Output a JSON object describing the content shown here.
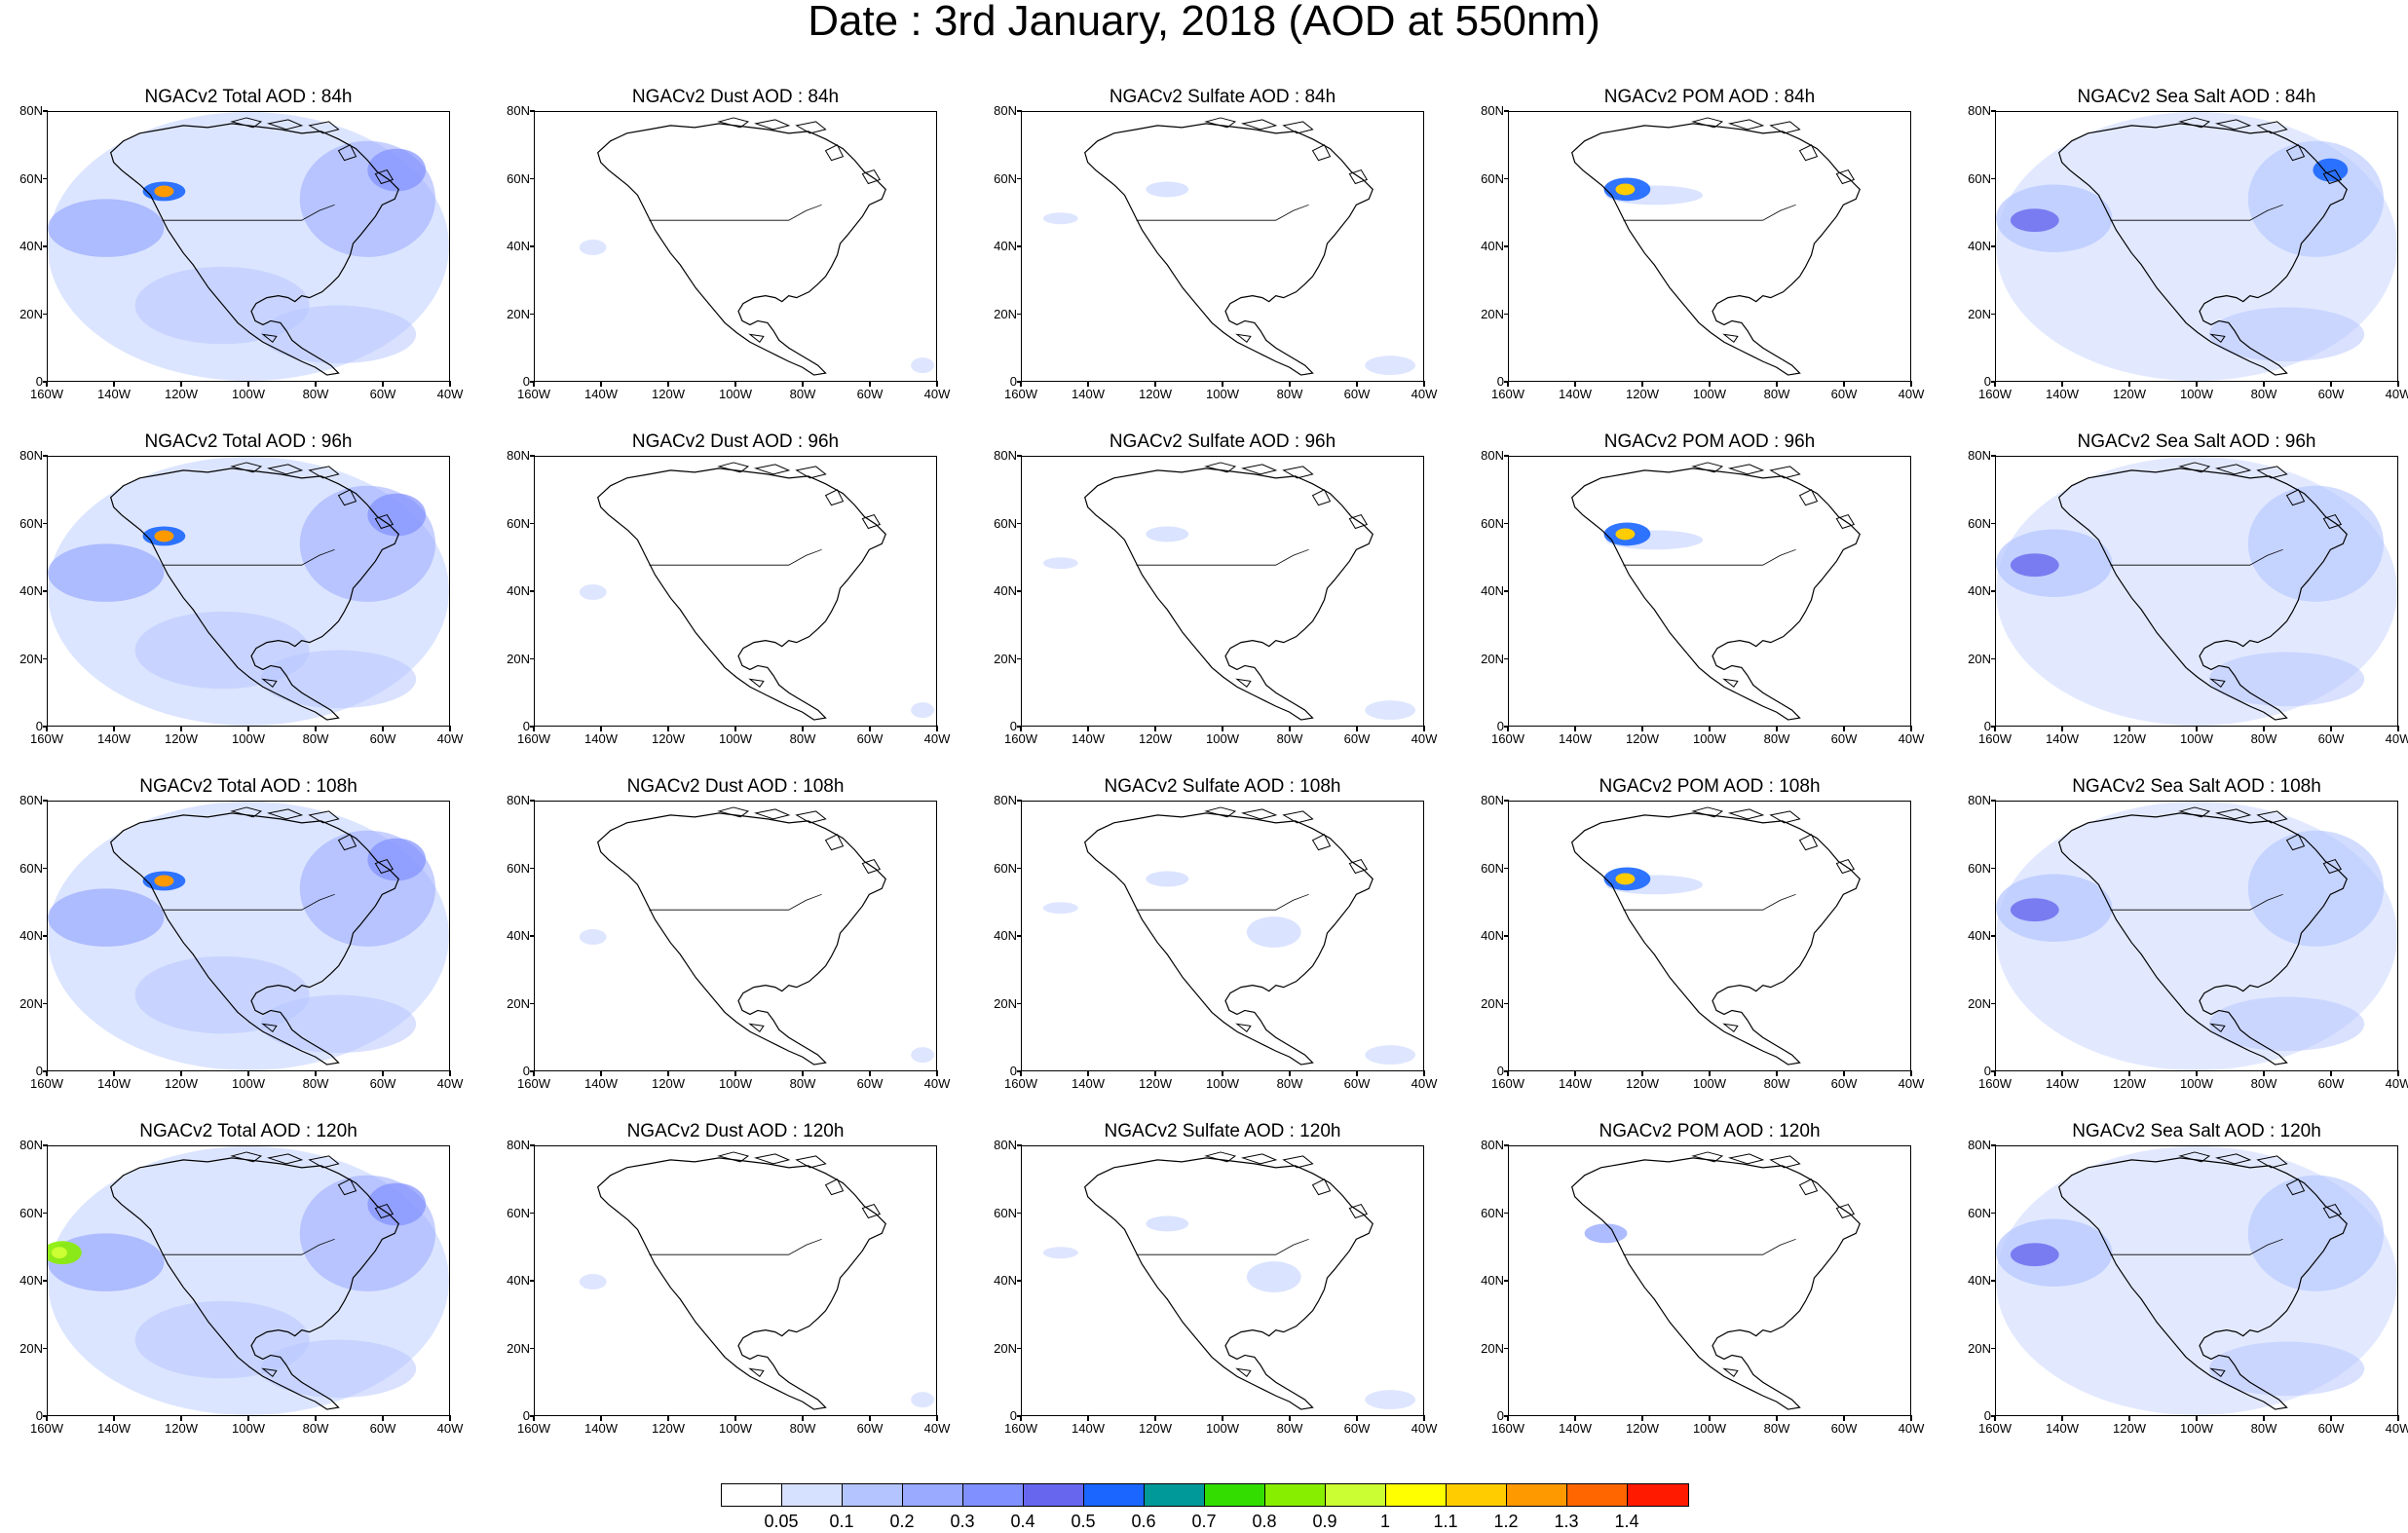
{
  "figure": {
    "title": "Date : 3rd January, 2018 (AOD at 550nm)"
  },
  "axes": {
    "lat_labels": [
      "80N",
      "60N",
      "40N",
      "20N",
      "0"
    ],
    "lon_labels": [
      "160W",
      "140W",
      "120W",
      "100W",
      "80W",
      "60W",
      "40W"
    ]
  },
  "panels": [
    {
      "title": "NGACv2 Total AOD : 84h",
      "species": "total",
      "forecast_hour": 84
    },
    {
      "title": "NGACv2 Dust AOD : 84h",
      "species": "dust",
      "forecast_hour": 84
    },
    {
      "title": "NGACv2 Sulfate AOD : 84h",
      "species": "sulfate",
      "forecast_hour": 84
    },
    {
      "title": "NGACv2 POM AOD : 84h",
      "species": "pom",
      "forecast_hour": 84
    },
    {
      "title": "NGACv2 Sea Salt AOD : 84h",
      "species": "seasalt",
      "forecast_hour": 84
    },
    {
      "title": "NGACv2 Total AOD : 96h",
      "species": "total",
      "forecast_hour": 96
    },
    {
      "title": "NGACv2 Dust AOD : 96h",
      "species": "dust",
      "forecast_hour": 96
    },
    {
      "title": "NGACv2 Sulfate AOD : 96h",
      "species": "sulfate",
      "forecast_hour": 96
    },
    {
      "title": "NGACv2 POM AOD : 96h",
      "species": "pom",
      "forecast_hour": 96
    },
    {
      "title": "NGACv2 Sea Salt AOD : 96h",
      "species": "seasalt",
      "forecast_hour": 96
    },
    {
      "title": "NGACv2 Total AOD : 108h",
      "species": "total",
      "forecast_hour": 108
    },
    {
      "title": "NGACv2 Dust AOD : 108h",
      "species": "dust",
      "forecast_hour": 108
    },
    {
      "title": "NGACv2 Sulfate AOD : 108h",
      "species": "sulfate",
      "forecast_hour": 108
    },
    {
      "title": "NGACv2 POM AOD : 108h",
      "species": "pom",
      "forecast_hour": 108
    },
    {
      "title": "NGACv2 Sea Salt AOD : 108h",
      "species": "seasalt",
      "forecast_hour": 108
    },
    {
      "title": "NGACv2 Total AOD : 120h",
      "species": "total",
      "forecast_hour": 120
    },
    {
      "title": "NGACv2 Dust AOD : 120h",
      "species": "dust",
      "forecast_hour": 120
    },
    {
      "title": "NGACv2 Sulfate AOD : 120h",
      "species": "sulfate",
      "forecast_hour": 120
    },
    {
      "title": "NGACv2 POM AOD : 120h",
      "species": "pom",
      "forecast_hour": 120
    },
    {
      "title": "NGACv2 Sea Salt  AOD : 120h",
      "species": "seasalt",
      "forecast_hour": 120
    }
  ],
  "colorbar": {
    "labels": [
      "0.05",
      "0.1",
      "0.2",
      "0.3",
      "0.4",
      "0.5",
      "0.6",
      "0.7",
      "0.8",
      "0.9",
      "1",
      "1.1",
      "1.2",
      "1.3",
      "1.4"
    ],
    "colors": [
      "#ffffff",
      "#d6e0ff",
      "#b3c4ff",
      "#99aaff",
      "#8090ff",
      "#6666ee",
      "#1a66ff",
      "#009999",
      "#33dd00",
      "#88ee00",
      "#ccff33",
      "#ffff00",
      "#ffcc00",
      "#ff9900",
      "#ff6600",
      "#ff1a00"
    ]
  }
}
